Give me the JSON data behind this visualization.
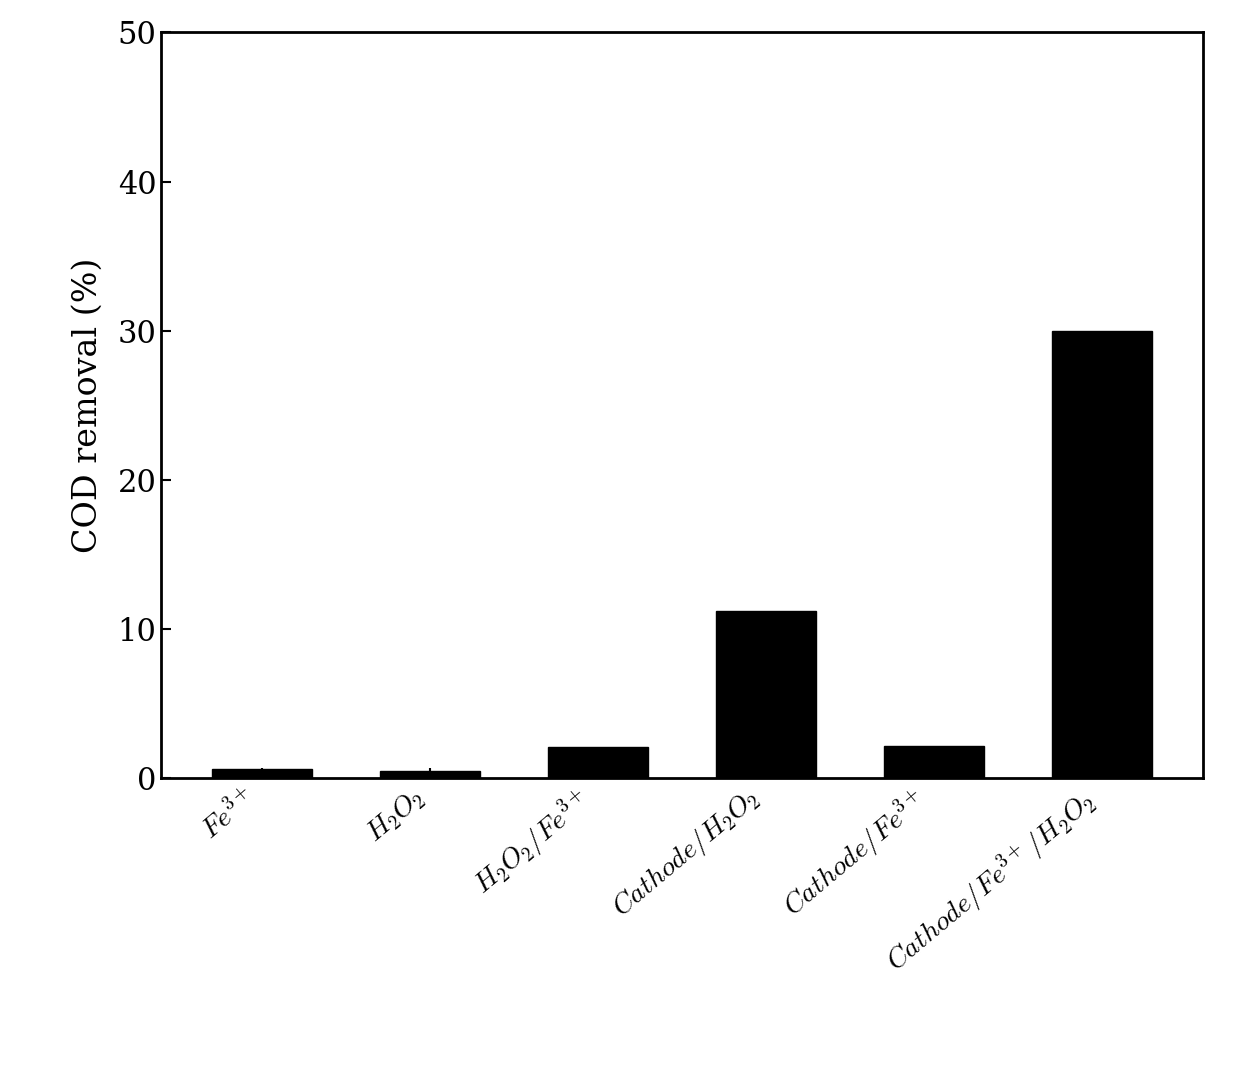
{
  "categories": [
    "$Fe^{3+}$",
    "$H_2O_2$",
    "$H_2O_2/Fe^{3+}$",
    "$Cathode/H_2O_2$",
    "$Cathode/Fe^{3+}$",
    "$Cathode/Fe^{3+}/H_2O_2$"
  ],
  "values": [
    0.6,
    0.5,
    2.1,
    11.2,
    2.2,
    30.0
  ],
  "bar_color": "#000000",
  "ylabel": "COD removal (%)",
  "ylim": [
    0,
    50
  ],
  "yticks": [
    0,
    10,
    20,
    30,
    40,
    50
  ],
  "background_color": "#ffffff",
  "bar_width": 0.6,
  "ylabel_fontsize": 24,
  "tick_fontsize": 22,
  "xtick_fontsize": 20,
  "tick_label_rotation": 40
}
